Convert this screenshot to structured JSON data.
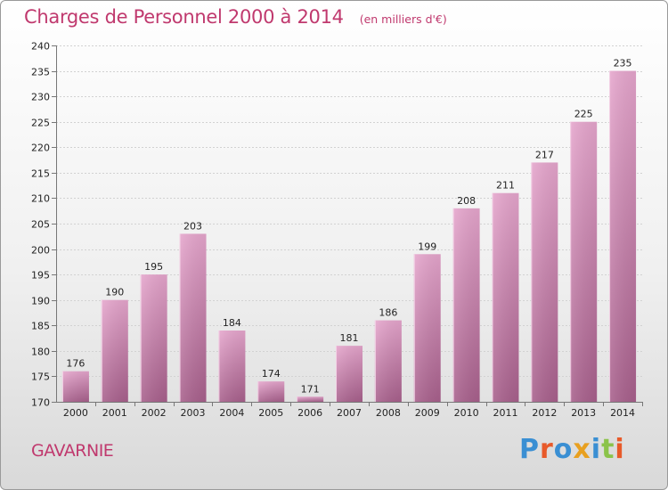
{
  "header": {
    "title": "Charges de Personnel 2000 à 2014",
    "subtitle": "(en milliers d'€)"
  },
  "footer": {
    "town": "GAVARNIE",
    "logo": "Proxiti"
  },
  "colors": {
    "accent": "#c0396e",
    "bar_top": "#e6a6cd",
    "bar_bottom": "#a8608c",
    "logo_letters": [
      "#3a8fd3",
      "#e85a2a",
      "#3a8fd3",
      "#e8a020",
      "#3a8fd3",
      "#8bc34a",
      "#e85a2a"
    ]
  },
  "chart_data": {
    "type": "bar",
    "title": "Charges de Personnel 2000 à 2014",
    "subtitle": "(en milliers d'€)",
    "categories": [
      "2000",
      "2001",
      "2002",
      "2003",
      "2004",
      "2005",
      "2006",
      "2007",
      "2008",
      "2009",
      "2010",
      "2011",
      "2012",
      "2013",
      "2014"
    ],
    "values": [
      176,
      190,
      195,
      203,
      184,
      174,
      171,
      181,
      186,
      199,
      208,
      211,
      217,
      225,
      235
    ],
    "ylim": [
      170,
      240
    ],
    "yticks": [
      170,
      175,
      180,
      185,
      190,
      195,
      200,
      205,
      210,
      215,
      220,
      225,
      230,
      235,
      240
    ],
    "xlabel": "",
    "ylabel": "",
    "grid": true,
    "data_labels": true
  }
}
